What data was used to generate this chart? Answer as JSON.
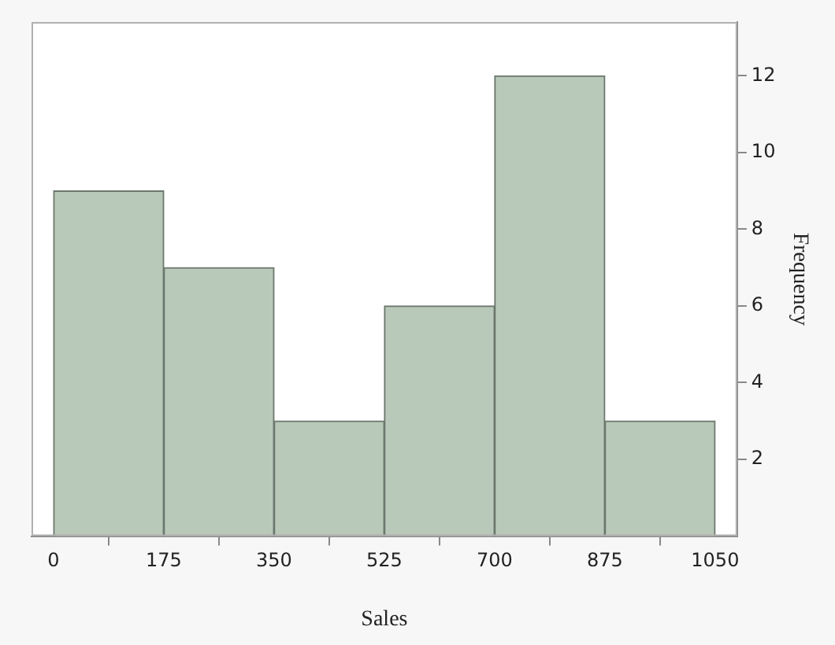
{
  "chart_data": {
    "type": "histogram",
    "xlabel": "Sales",
    "ylabel": "Frequency",
    "bins": [
      0,
      175,
      350,
      525,
      700,
      875,
      1050
    ],
    "values": [
      9,
      7,
      3,
      6,
      12,
      3
    ],
    "color": "#b8c8b9",
    "xlim": [
      -35,
      1085
    ],
    "ylim": [
      0,
      13.4
    ],
    "xticks": [
      0,
      175,
      350,
      525,
      700,
      875,
      1050
    ],
    "yticks": [
      2,
      4,
      6,
      8,
      10,
      12
    ],
    "grid": false,
    "legend": false
  }
}
